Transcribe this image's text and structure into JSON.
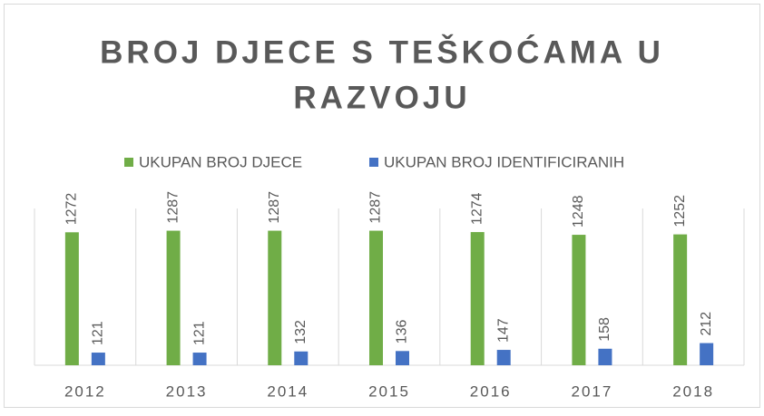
{
  "chart_data": {
    "type": "bar",
    "title": [
      "BROJ DJECE S TEŠKOĆAMA U",
      "RAZVOJU"
    ],
    "categories": [
      "2012",
      "2013",
      "2014",
      "2015",
      "2016",
      "2017",
      "2018"
    ],
    "series": [
      {
        "name": "UKUPAN BROJ DJECE",
        "color": "#70ad47",
        "values": [
          1272,
          1287,
          1287,
          1287,
          1274,
          1248,
          1252
        ]
      },
      {
        "name": "UKUPAN BROJ IDENTIFICIRANIH",
        "color": "#4472c4",
        "values": [
          121,
          121,
          132,
          136,
          147,
          158,
          212
        ]
      }
    ],
    "ylim": [
      0,
      1500
    ]
  }
}
